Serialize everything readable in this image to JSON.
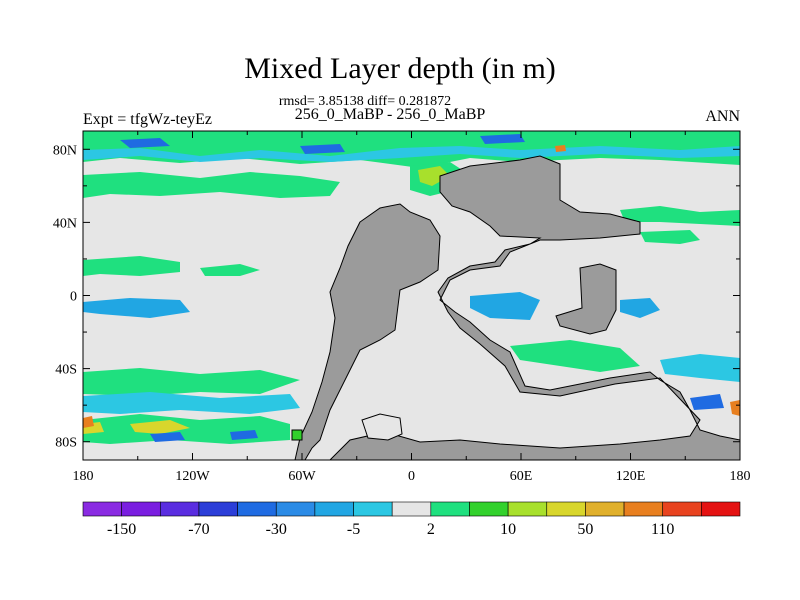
{
  "map": {
    "title": "Mixed Layer depth (in m)",
    "stats_line": "rmsd= 3.85138  diff= 0.281872",
    "subtitle": "256_0_MaBP - 256_0_MaBP",
    "left_label": "Expt = tfgWz-teyEz",
    "right_label": "ANN",
    "lat_ticks": [
      {
        "value": 80,
        "label": "80N"
      },
      {
        "value": 40,
        "label": "40N"
      },
      {
        "value": 0,
        "label": "0"
      },
      {
        "value": -40,
        "label": "40S"
      },
      {
        "value": -80,
        "label": "80S"
      }
    ],
    "lon_ticks": [
      {
        "value": -180,
        "label": "180"
      },
      {
        "value": -120,
        "label": "120W"
      },
      {
        "value": -60,
        "label": "60W"
      },
      {
        "value": 0,
        "label": "0"
      },
      {
        "value": 60,
        "label": "60E"
      },
      {
        "value": 120,
        "label": "120E"
      },
      {
        "value": 180,
        "label": "180"
      }
    ],
    "extent": {
      "lon": [
        -180,
        180
      ],
      "lat": [
        -90,
        90
      ]
    },
    "colors": {
      "land": "#9b9b9b",
      "background": "#e6e6e6",
      "level_colors": [
        "#8a2be2",
        "#7a1ee0",
        "#5a2de0",
        "#2c3ed8",
        "#1f6be2",
        "#2b8be6",
        "#21a6e3",
        "#2cc7e3",
        "#e6e6e6",
        "#1fe07f",
        "#32d12c",
        "#a8e02c",
        "#d8d62c",
        "#e0b02c",
        "#e87f1f",
        "#e8431f",
        "#e41212"
      ]
    },
    "colorbar": {
      "labels": [
        "-150",
        "-70",
        "-30",
        "-5",
        "2",
        "10",
        "50",
        "110"
      ]
    }
  }
}
